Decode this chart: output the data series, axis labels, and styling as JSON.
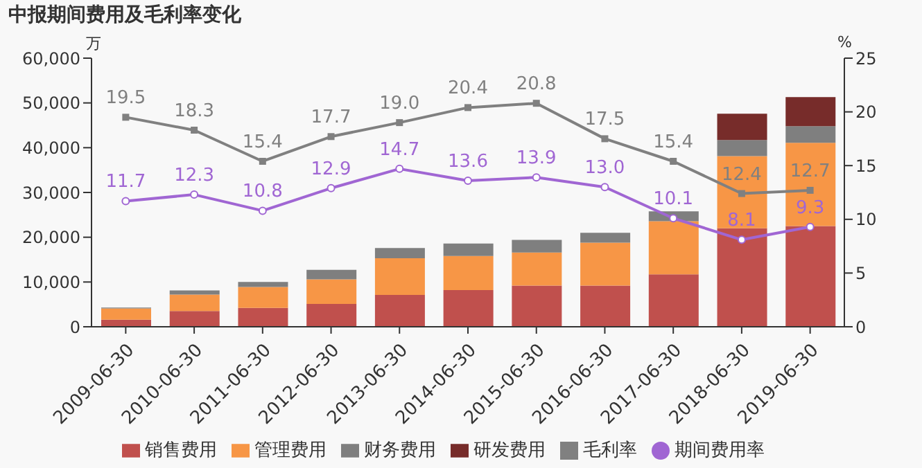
{
  "chart_data": {
    "type": "bar",
    "title": "中报期间费用及毛利率变化",
    "ylabel": "万",
    "y2label": "%",
    "categories": [
      "2009-06-30",
      "2010-06-30",
      "2011-06-30",
      "2012-06-30",
      "2013-06-30",
      "2014-06-30",
      "2015-06-30",
      "2016-06-30",
      "2017-06-30",
      "2018-06-30",
      "2019-06-30"
    ],
    "stacked": true,
    "ylim": [
      0,
      60000
    ],
    "yticks": [
      {
        "value": 0,
        "label": "0"
      },
      {
        "value": 10000,
        "label": "10,000"
      },
      {
        "value": 20000,
        "label": "20,000"
      },
      {
        "value": 30000,
        "label": "30,000"
      },
      {
        "value": 40000,
        "label": "40,000"
      },
      {
        "value": 50000,
        "label": "50,000"
      },
      {
        "value": 60000,
        "label": "60,000"
      }
    ],
    "y2lim": [
      0,
      25
    ],
    "y2ticks": [
      0,
      5,
      10,
      15,
      20,
      25
    ],
    "grid": false,
    "legend": "bottom",
    "series": [
      {
        "name": "销售费用",
        "color": "#c0504d",
        "values": [
          1600,
          3500,
          4200,
          5100,
          7100,
          8200,
          9200,
          9200,
          11700,
          22000,
          22500
        ]
      },
      {
        "name": "管理费用",
        "color": "#f79646",
        "values": [
          2500,
          3700,
          4700,
          5500,
          8200,
          7600,
          7400,
          9600,
          11900,
          16100,
          18600
        ]
      },
      {
        "name": "财务费用",
        "color": "#7f7f7f",
        "values": [
          200,
          900,
          1100,
          2100,
          2300,
          2800,
          2800,
          2200,
          2200,
          3600,
          3700
        ]
      },
      {
        "name": "研发费用",
        "color": "#772c2a",
        "values": [
          null,
          null,
          null,
          null,
          null,
          null,
          null,
          null,
          null,
          5900,
          6500
        ]
      },
      {
        "name": "毛利率",
        "type": "line",
        "axis": "y2",
        "color": "#808080",
        "marker": "square",
        "values": [
          19.5,
          18.3,
          15.4,
          17.7,
          19.0,
          20.4,
          20.8,
          17.5,
          15.4,
          12.4,
          12.7
        ],
        "value_labels": [
          "19.5",
          "18.3",
          "15.4",
          "17.7",
          "19.0",
          "20.4",
          "20.8",
          "17.5",
          "15.4",
          "12.4",
          "12.7"
        ]
      },
      {
        "name": "期间费用率",
        "type": "line",
        "axis": "y2",
        "color": "#a066d3",
        "marker": "circle",
        "values": [
          11.7,
          12.3,
          10.8,
          12.9,
          14.7,
          13.6,
          13.9,
          13.0,
          10.1,
          8.1,
          9.3
        ],
        "value_labels": [
          "11.7",
          "12.3",
          "10.8",
          "12.9",
          "14.7",
          "13.6",
          "13.9",
          "13.0",
          "10.1",
          "8.1",
          "9.3"
        ]
      }
    ]
  }
}
